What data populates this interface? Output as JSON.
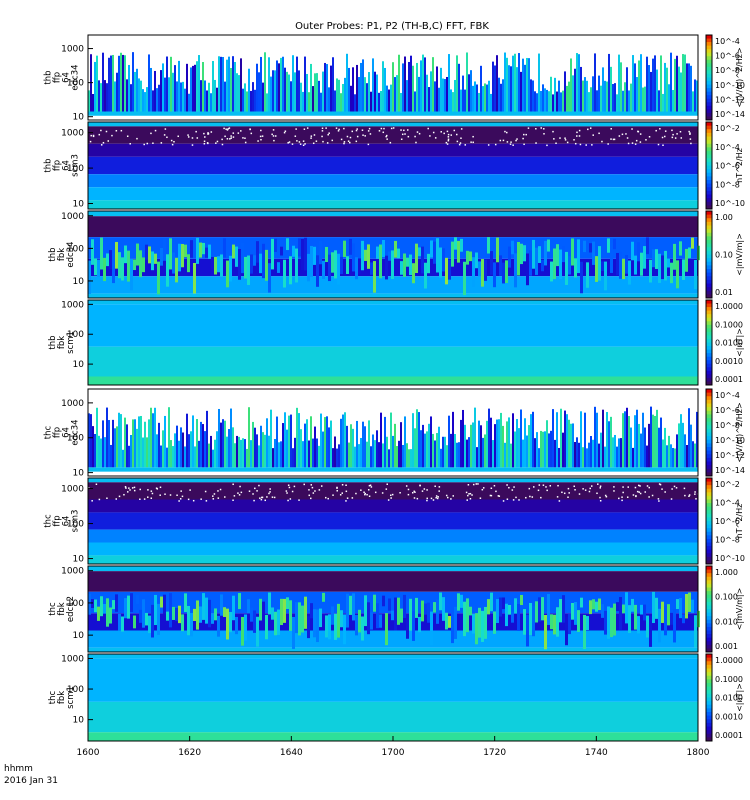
{
  "chart_data": {
    "type": "heatmap",
    "title": "Outer Probes: P1, P2 (TH-B,C) FFT, FBK",
    "time_label_line1": "hhmm",
    "time_label_line2": "2016 Jan 31",
    "x_ticks": [
      "1600",
      "1620",
      "1640",
      "1700",
      "1720",
      "1740",
      "1800"
    ],
    "x_range": [
      "16:00",
      "18:00"
    ],
    "colormap": "rainbow (purple-blue-cyan-green-yellow-red)",
    "panels": [
      {
        "label_lines": [
          "thb",
          "ffp",
          "64",
          "edc34"
        ],
        "y_scale": "log",
        "y_range": [
          8,
          2500
        ],
        "y_ticks": [
          "10",
          "100",
          "1000"
        ],
        "colorbar_label": "<(V/m)^2/Hz>",
        "colorbar_ticks": [
          "10^-4",
          "10^-6",
          "10^-8",
          "10^-10",
          "10^-12",
          "10^-14"
        ],
        "pattern": "ffp-e"
      },
      {
        "label_lines": [
          "thb",
          "ffp",
          "64",
          "scm3"
        ],
        "y_scale": "log",
        "y_range": [
          7,
          2000
        ],
        "y_ticks": [
          "10",
          "100",
          "1000"
        ],
        "colorbar_label": "nT^2/Hz",
        "colorbar_ticks": [
          "10^-2",
          "10^-4",
          "10^-6",
          "10^-8",
          "10^-10"
        ],
        "pattern": "ffp-b"
      },
      {
        "label_lines": [
          "thb",
          "fbk",
          "edc34"
        ],
        "y_scale": "log",
        "y_range": [
          3,
          1400
        ],
        "y_ticks": [
          "10",
          "100",
          "1000"
        ],
        "colorbar_label": "<|mV/m|>",
        "colorbar_ticks": [
          "1.00",
          "0.10",
          "0.01"
        ],
        "pattern": "fbk-e"
      },
      {
        "label_lines": [
          "thb",
          "fbk",
          "scm1"
        ],
        "y_scale": "log",
        "y_range": [
          2,
          1400
        ],
        "y_ticks": [
          "10",
          "100",
          "1000"
        ],
        "colorbar_label": "<|nT|>",
        "colorbar_ticks": [
          "1.0000",
          "0.1000",
          "0.0100",
          "0.0010",
          "0.0001"
        ],
        "pattern": "fbk-b"
      },
      {
        "label_lines": [
          "thc",
          "ffp",
          "64",
          "edc34"
        ],
        "y_scale": "log",
        "y_range": [
          8,
          2500
        ],
        "y_ticks": [
          "10",
          "100",
          "1000"
        ],
        "colorbar_label": "<(V/m)^2/Hz>",
        "colorbar_ticks": [
          "10^-4",
          "10^-6",
          "10^-8",
          "10^-10",
          "10^-12",
          "10^-14"
        ],
        "pattern": "ffp-e"
      },
      {
        "label_lines": [
          "thc",
          "ffp",
          "64",
          "scm3"
        ],
        "y_scale": "log",
        "y_range": [
          7,
          2000
        ],
        "y_ticks": [
          "10",
          "100",
          "1000"
        ],
        "colorbar_label": "nT^2/Hz",
        "colorbar_ticks": [
          "10^-2",
          "10^-4",
          "10^-6",
          "10^-8",
          "10^-10"
        ],
        "pattern": "ffp-b"
      },
      {
        "label_lines": [
          "thc",
          "fbk",
          "edc12"
        ],
        "y_scale": "log",
        "y_range": [
          3,
          1400
        ],
        "y_ticks": [
          "10",
          "100",
          "1000"
        ],
        "colorbar_label": "<|mV/m|>",
        "colorbar_ticks": [
          "1.000",
          "0.100",
          "0.010",
          "0.001"
        ],
        "pattern": "fbk-e"
      },
      {
        "label_lines": [
          "thc",
          "fbk",
          "scm1"
        ],
        "y_scale": "log",
        "y_range": [
          2,
          1400
        ],
        "y_ticks": [
          "10",
          "100",
          "1000"
        ],
        "colorbar_label": "<|nT|>",
        "colorbar_ticks": [
          "1.0000",
          "0.1000",
          "0.0100",
          "0.0010",
          "0.0001"
        ],
        "pattern": "fbk-b"
      }
    ]
  }
}
